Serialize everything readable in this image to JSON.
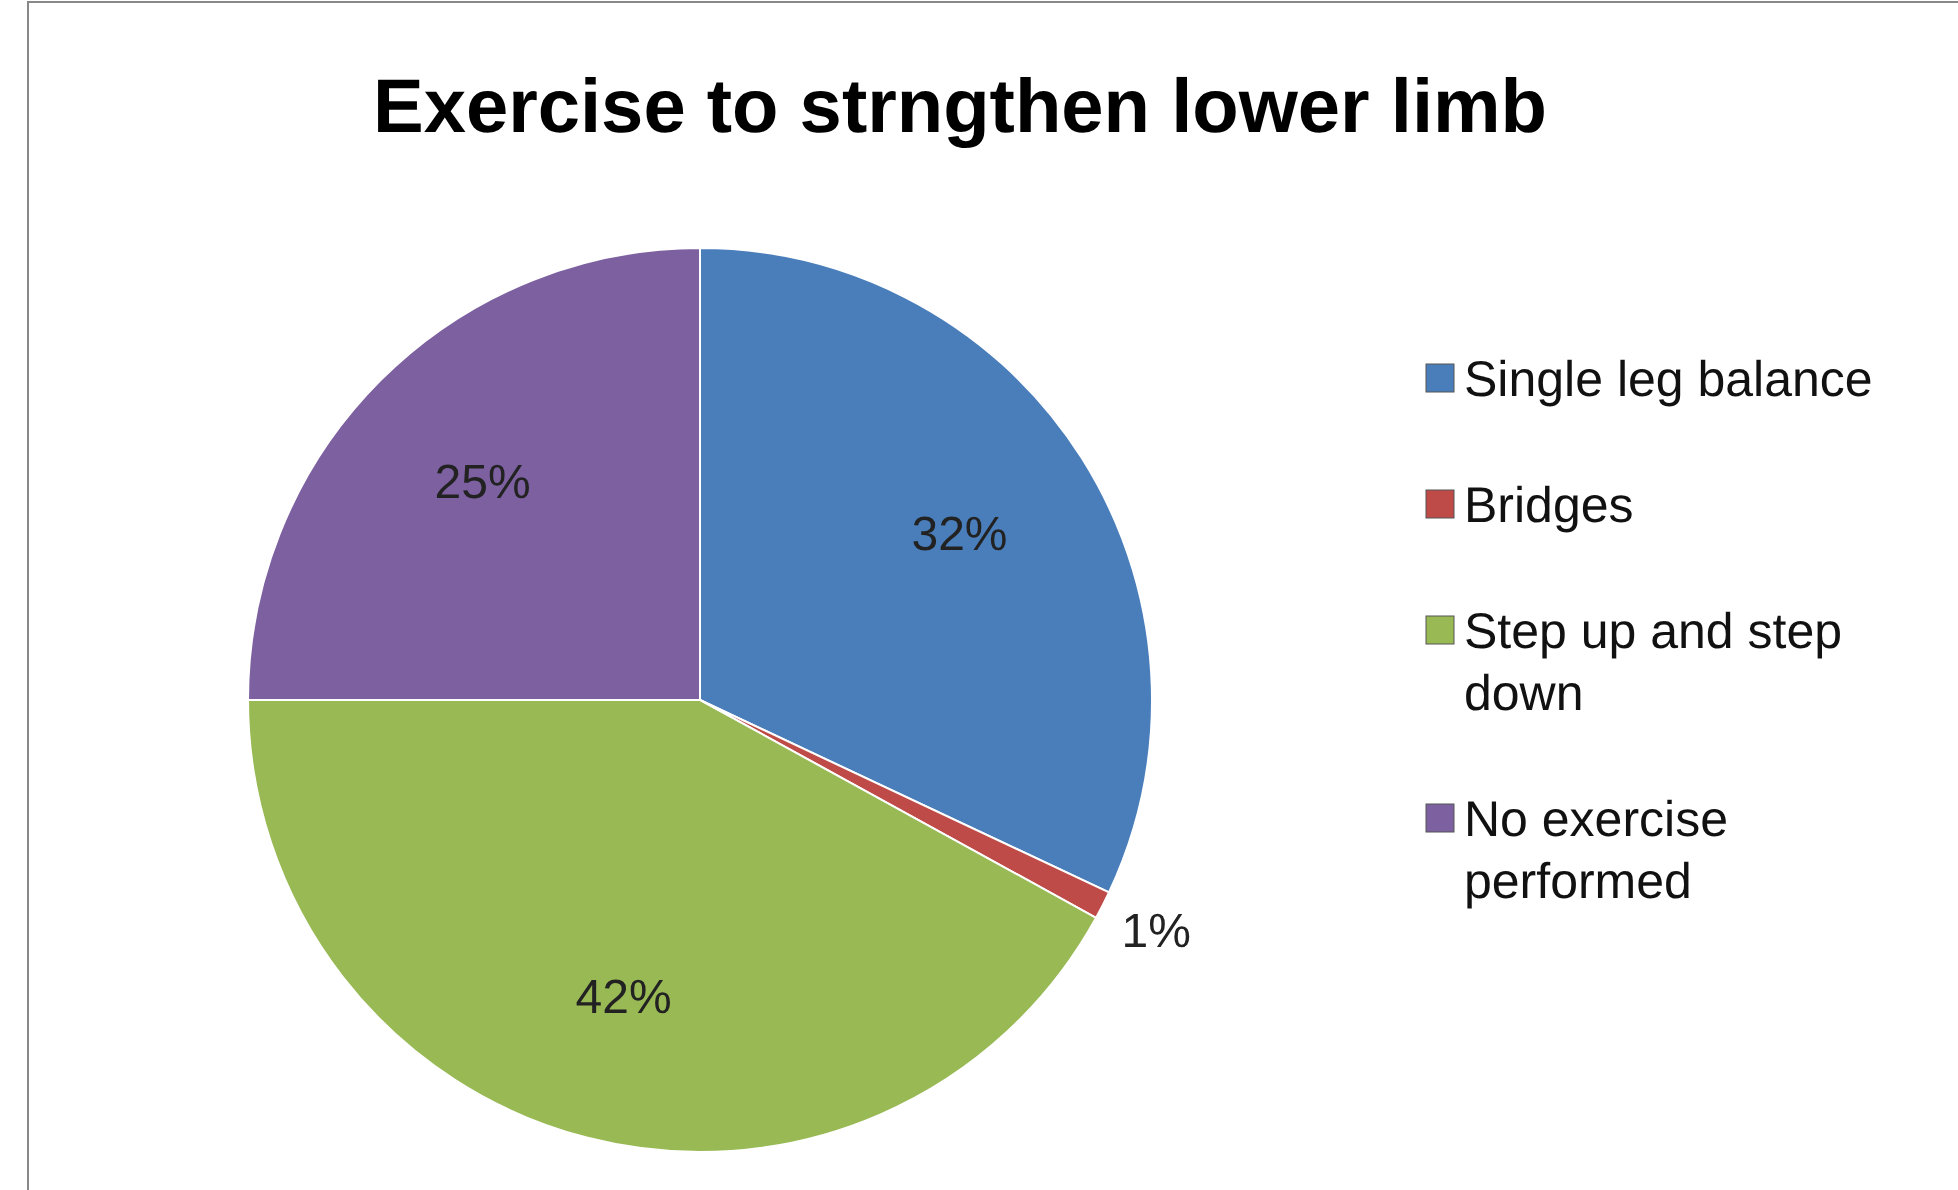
{
  "chart_data": {
    "type": "pie",
    "title": "Exercise to strngthen lower limb",
    "categories": [
      "Single leg balance",
      "Bridges",
      "Step up and step down",
      "No exercise performed"
    ],
    "values": [
      32,
      1,
      42,
      25
    ],
    "colors": [
      "#4a7ebb",
      "#be4b48",
      "#98b954",
      "#7d60a0"
    ],
    "value_labels": [
      "32%",
      "1%",
      "42%",
      "25%"
    ],
    "legend": "right"
  }
}
